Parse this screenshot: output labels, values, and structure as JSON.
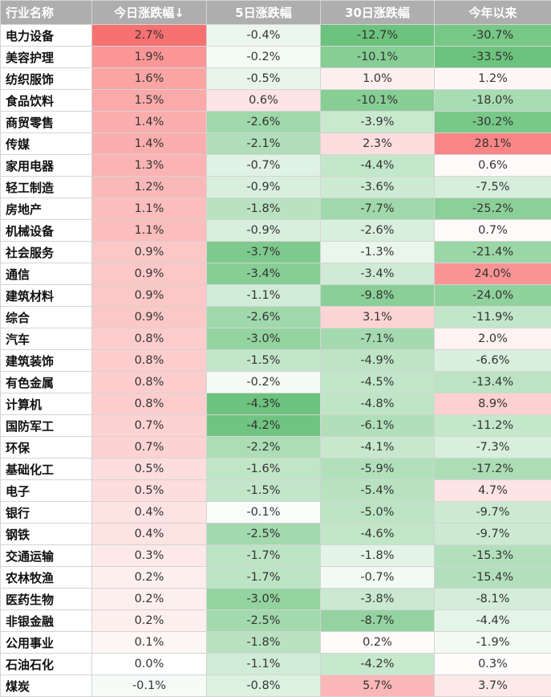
{
  "chart_data": {
    "type": "table",
    "columns": [
      "行业名称",
      "今日涨跌幅↓",
      "5日涨跌幅",
      "30日涨跌幅",
      "今年以来"
    ],
    "rows": [
      {
        "name": "电力设备",
        "values": [
          "2.7%",
          "-0.4%",
          "-12.7%",
          "-30.7%"
        ]
      },
      {
        "name": "美容护理",
        "values": [
          "1.9%",
          "-0.2%",
          "-10.1%",
          "-33.5%"
        ]
      },
      {
        "name": "纺织服饰",
        "values": [
          "1.6%",
          "-0.5%",
          "1.0%",
          "1.2%"
        ]
      },
      {
        "name": "食品饮料",
        "values": [
          "1.5%",
          "0.6%",
          "-10.1%",
          "-18.0%"
        ]
      },
      {
        "name": "商贸零售",
        "values": [
          "1.4%",
          "-2.6%",
          "-3.9%",
          "-30.2%"
        ]
      },
      {
        "name": "传媒",
        "values": [
          "1.4%",
          "-2.1%",
          "2.3%",
          "28.1%"
        ]
      },
      {
        "name": "家用电器",
        "values": [
          "1.3%",
          "-0.7%",
          "-4.4%",
          "0.6%"
        ]
      },
      {
        "name": "轻工制造",
        "values": [
          "1.2%",
          "-0.9%",
          "-3.6%",
          "-7.5%"
        ]
      },
      {
        "name": "房地产",
        "values": [
          "1.1%",
          "-1.8%",
          "-7.7%",
          "-25.2%"
        ]
      },
      {
        "name": "机械设备",
        "values": [
          "1.1%",
          "-0.9%",
          "-2.6%",
          "0.7%"
        ]
      },
      {
        "name": "社会服务",
        "values": [
          "0.9%",
          "-3.7%",
          "-1.3%",
          "-21.4%"
        ]
      },
      {
        "name": "通信",
        "values": [
          "0.9%",
          "-3.4%",
          "-3.4%",
          "24.0%"
        ]
      },
      {
        "name": "建筑材料",
        "values": [
          "0.9%",
          "-1.1%",
          "-9.8%",
          "-24.0%"
        ]
      },
      {
        "name": "综合",
        "values": [
          "0.9%",
          "-2.6%",
          "3.1%",
          "-11.9%"
        ]
      },
      {
        "name": "汽车",
        "values": [
          "0.8%",
          "-3.0%",
          "-7.1%",
          "2.0%"
        ]
      },
      {
        "name": "建筑装饰",
        "values": [
          "0.8%",
          "-1.5%",
          "-4.9%",
          "-6.6%"
        ]
      },
      {
        "name": "有色金属",
        "values": [
          "0.8%",
          "-0.2%",
          "-4.5%",
          "-13.4%"
        ]
      },
      {
        "name": "计算机",
        "values": [
          "0.8%",
          "-4.3%",
          "-4.8%",
          "8.9%"
        ]
      },
      {
        "name": "国防军工",
        "values": [
          "0.7%",
          "-4.2%",
          "-6.1%",
          "-11.2%"
        ]
      },
      {
        "name": "环保",
        "values": [
          "0.7%",
          "-2.2%",
          "-4.1%",
          "-7.3%"
        ]
      },
      {
        "name": "基础化工",
        "values": [
          "0.5%",
          "-1.6%",
          "-5.9%",
          "-17.2%"
        ]
      },
      {
        "name": "电子",
        "values": [
          "0.5%",
          "-1.5%",
          "-5.4%",
          "4.7%"
        ]
      },
      {
        "name": "银行",
        "values": [
          "0.4%",
          "-0.1%",
          "-5.0%",
          "-9.7%"
        ]
      },
      {
        "name": "钢铁",
        "values": [
          "0.4%",
          "-2.5%",
          "-4.6%",
          "-9.7%"
        ]
      },
      {
        "name": "交通运输",
        "values": [
          "0.3%",
          "-1.7%",
          "-1.8%",
          "-15.3%"
        ]
      },
      {
        "name": "农林牧渔",
        "values": [
          "0.2%",
          "-1.7%",
          "-0.7%",
          "-15.4%"
        ]
      },
      {
        "name": "医药生物",
        "values": [
          "0.2%",
          "-3.0%",
          "-3.8%",
          "-8.1%"
        ]
      },
      {
        "name": "非银金融",
        "values": [
          "0.2%",
          "-2.5%",
          "-8.7%",
          "-4.4%"
        ]
      },
      {
        "name": "公用事业",
        "values": [
          "0.1%",
          "-1.8%",
          "0.2%",
          "-1.9%"
        ]
      },
      {
        "name": "石油石化",
        "values": [
          "0.0%",
          "-1.1%",
          "-4.2%",
          "0.3%"
        ]
      },
      {
        "name": "煤炭",
        "values": [
          "-0.1%",
          "-0.8%",
          "5.7%",
          "3.7%"
        ]
      }
    ],
    "colors": {
      "header_bg": "#aeaeae",
      "header_text": "#ffffff",
      "positive": "#f87171",
      "negative": "#6cc37d",
      "neutral": "#ffffff"
    }
  }
}
